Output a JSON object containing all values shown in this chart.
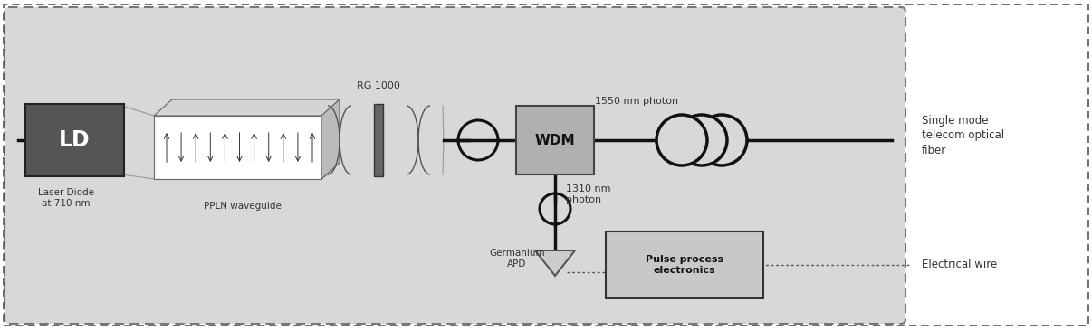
{
  "bg_outer": "#ffffff",
  "bg_inner": "#dcdcdc",
  "text_color": "#333333",
  "line_color": "#111111",
  "ld_fill": "#555555",
  "wdm_fill": "#b0b0b0",
  "pulse_fill": "#c8c8c8",
  "labels": {
    "ld": "LD",
    "laser_diode": "Laser Diode\nat 710 nm",
    "ppln": "PPLN waveguide",
    "rg1000": "RG 1000",
    "wdm": "WDM",
    "fiber_label": "Single mode\ntelecom optical\nfiber",
    "elec_label": "Electrical wire",
    "nm1550": "1550 nm photon",
    "nm1310": "1310 nm\nphoton",
    "germanium": "Germanium\nAPD",
    "pulse": "Pulse process\nelectronics"
  }
}
